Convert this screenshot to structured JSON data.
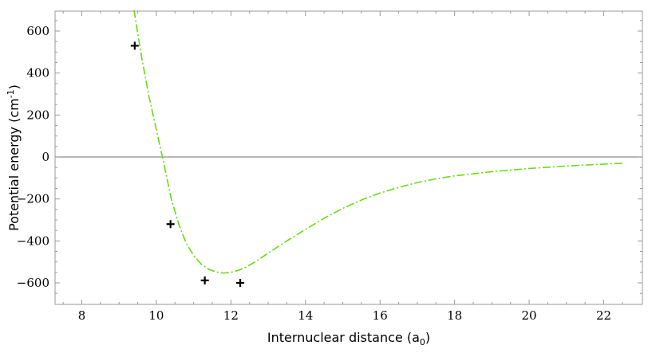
{
  "chart_data": {
    "type": "line",
    "title": "",
    "xlabel": {
      "main": "Internuclear distance (a",
      "sub": "0",
      "tail": ")"
    },
    "ylabel": {
      "main": "Potential energy (cm",
      "sup": "-1",
      "tail": ")"
    },
    "xlim": [
      7.3,
      23.0
    ],
    "ylim": [
      -700,
      700
    ],
    "x_ticks": [
      8,
      10,
      12,
      14,
      16,
      18,
      20,
      22
    ],
    "x_tick_labels": [
      "8",
      "10",
      "12",
      "14",
      "16",
      "18",
      "20",
      "22"
    ],
    "y_ticks": [
      -600,
      -400,
      -200,
      0,
      200,
      400,
      600
    ],
    "y_tick_labels": [
      "−600",
      "−400",
      "−200",
      "0",
      "200",
      "400",
      "600"
    ],
    "grid": false,
    "series": [
      {
        "kind": "curve",
        "color": "#66dd11",
        "style": "dash-dot",
        "x": [
          9.4,
          9.6,
          9.8,
          10.0,
          10.2,
          10.4,
          10.6,
          10.8,
          11.0,
          11.2,
          11.4,
          11.6,
          11.8,
          12.0,
          12.2,
          12.4,
          12.6,
          12.8,
          13.0,
          13.5,
          14.0,
          14.5,
          15.0,
          15.5,
          16.0,
          16.5,
          17.0,
          17.5,
          18.0,
          19.0,
          20.0,
          21.0,
          22.0,
          22.5
        ],
        "y": [
          700,
          480,
          290,
          130,
          -30,
          -200,
          -320,
          -410,
          -470,
          -510,
          -535,
          -548,
          -553,
          -550,
          -540,
          -525,
          -505,
          -482,
          -458,
          -400,
          -345,
          -292,
          -245,
          -205,
          -172,
          -145,
          -122,
          -104,
          -90,
          -70,
          -55,
          -43,
          -34,
          -30
        ]
      },
      {
        "kind": "markers",
        "marker": "plus",
        "color": "#000000",
        "x": [
          9.42,
          10.38,
          11.3,
          12.25
        ],
        "y": [
          530,
          -320,
          -588,
          -600
        ]
      }
    ],
    "zero_line": {
      "y": 0,
      "color": "#8a8a8a"
    }
  }
}
